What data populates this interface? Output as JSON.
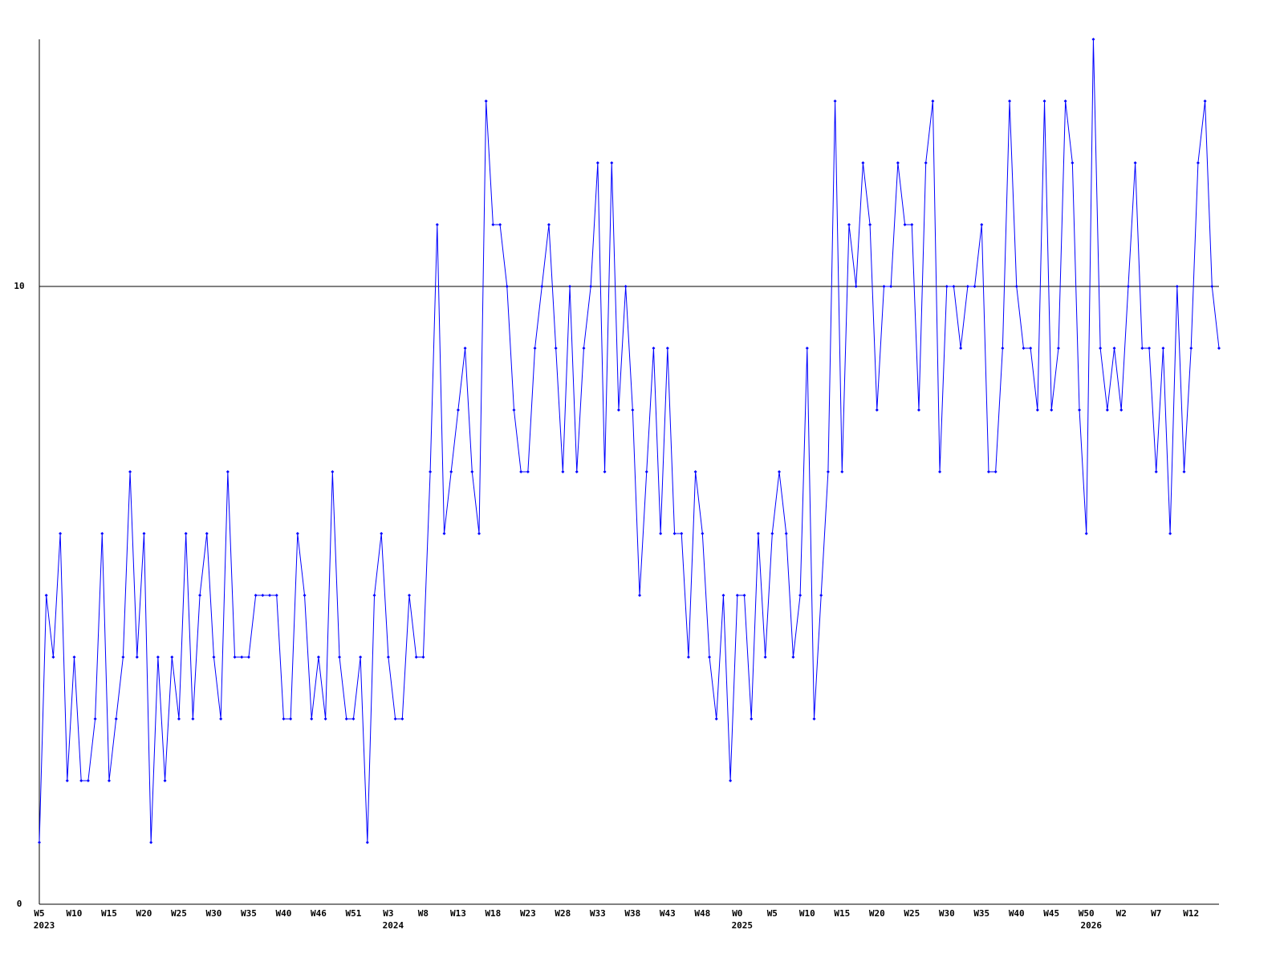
{
  "chart_data": {
    "type": "line",
    "categories": [
      "W5",
      null,
      null,
      null,
      null,
      "W10",
      null,
      null,
      null,
      null,
      "W15",
      null,
      null,
      null,
      null,
      "W20",
      null,
      null,
      null,
      null,
      "W25",
      null,
      null,
      null,
      null,
      "W30",
      null,
      null,
      null,
      null,
      "W35",
      null,
      null,
      null,
      null,
      "W40",
      null,
      null,
      null,
      null,
      "W46",
      null,
      null,
      null,
      null,
      "W51",
      null,
      null,
      null,
      null,
      "W3",
      null,
      null,
      null,
      null,
      "W8",
      null,
      null,
      null,
      null,
      "W13",
      null,
      null,
      null,
      null,
      "W18",
      null,
      null,
      null,
      null,
      "W23",
      null,
      null,
      null,
      null,
      "W28",
      null,
      null,
      null,
      null,
      "W33",
      null,
      null,
      null,
      null,
      "W38",
      null,
      null,
      null,
      null,
      "W43",
      null,
      null,
      null,
      null,
      "W48",
      null,
      null,
      null,
      null,
      "W0",
      null,
      null,
      null,
      null,
      "W5",
      null,
      null,
      null,
      null,
      "W10",
      null,
      null,
      null,
      null,
      "W15",
      null,
      null,
      null,
      null,
      "W20",
      null,
      null,
      null,
      null,
      "W25",
      null,
      null,
      null,
      null,
      "W30",
      null,
      null,
      null,
      null,
      "W35",
      null,
      null,
      null,
      null,
      "W40",
      null,
      null,
      null,
      null,
      "W45",
      null,
      null,
      null,
      null,
      "W50",
      null,
      null,
      null,
      null,
      "W2",
      null,
      null,
      null,
      null,
      "W7",
      null,
      null,
      null,
      null,
      "W12",
      null,
      null,
      null,
      null
    ],
    "category_years": [
      "2023",
      null,
      null,
      null,
      null,
      null,
      null,
      null,
      null,
      null,
      null,
      null,
      null,
      null,
      null,
      null,
      null,
      null,
      null,
      null,
      null,
      null,
      null,
      null,
      null,
      null,
      null,
      null,
      null,
      null,
      null,
      null,
      null,
      null,
      null,
      null,
      null,
      null,
      null,
      null,
      null,
      null,
      null,
      null,
      null,
      null,
      null,
      null,
      null,
      null,
      "2024",
      null,
      null,
      null,
      null,
      null,
      null,
      null,
      null,
      null,
      null,
      null,
      null,
      null,
      null,
      null,
      null,
      null,
      null,
      null,
      null,
      null,
      null,
      null,
      null,
      null,
      null,
      null,
      null,
      null,
      null,
      null,
      null,
      null,
      null,
      null,
      null,
      null,
      null,
      null,
      null,
      null,
      null,
      null,
      null,
      null,
      null,
      null,
      null,
      null,
      "2025",
      null,
      null,
      null,
      null,
      null,
      null,
      null,
      null,
      null,
      null,
      null,
      null,
      null,
      null,
      null,
      null,
      null,
      null,
      null,
      null,
      null,
      null,
      null,
      null,
      null,
      null,
      null,
      null,
      null,
      null,
      null,
      null,
      null,
      null,
      null,
      null,
      null,
      null,
      null,
      null,
      null,
      null,
      null,
      null,
      null,
      null,
      null,
      null,
      null,
      "2026",
      null,
      null,
      null,
      null,
      null,
      null,
      null,
      null,
      null,
      null,
      null,
      null,
      null,
      null,
      null,
      null,
      null,
      null,
      null
    ],
    "values": [
      1,
      5,
      4,
      6,
      2,
      4,
      2,
      2,
      3,
      6,
      2,
      3,
      4,
      7,
      4,
      6,
      1,
      4,
      2,
      4,
      3,
      6,
      3,
      5,
      6,
      4,
      3,
      7,
      4,
      4,
      4,
      5,
      5,
      5,
      5,
      3,
      3,
      6,
      5,
      3,
      4,
      3,
      7,
      4,
      3,
      3,
      4,
      1,
      5,
      6,
      4,
      3,
      3,
      5,
      4,
      4,
      7,
      11,
      6,
      7,
      8,
      9,
      7,
      6,
      13,
      11,
      11,
      10,
      8,
      7,
      7,
      9,
      10,
      11,
      9,
      7,
      10,
      7,
      9,
      10,
      12,
      7,
      12,
      8,
      10,
      8,
      5,
      7,
      9,
      6,
      9,
      6,
      6,
      4,
      7,
      6,
      4,
      3,
      5,
      2,
      5,
      5,
      3,
      6,
      4,
      6,
      7,
      6,
      4,
      5,
      9,
      3,
      5,
      7,
      13,
      7,
      11,
      10,
      12,
      11,
      8,
      10,
      10,
      12,
      11,
      11,
      8,
      12,
      13,
      7,
      10,
      10,
      9,
      10,
      10,
      11,
      7,
      7,
      9,
      13,
      10,
      9,
      9,
      8,
      13,
      8,
      9,
      13,
      12,
      8,
      6,
      14,
      9,
      8,
      9,
      8,
      10,
      12,
      9,
      9,
      7,
      9,
      6,
      10,
      7,
      9,
      12,
      13,
      10,
      9
    ],
    "color": "#0000ff",
    "ylim": [
      0,
      14
    ],
    "yticks": [
      0,
      10
    ],
    "grid": true
  }
}
